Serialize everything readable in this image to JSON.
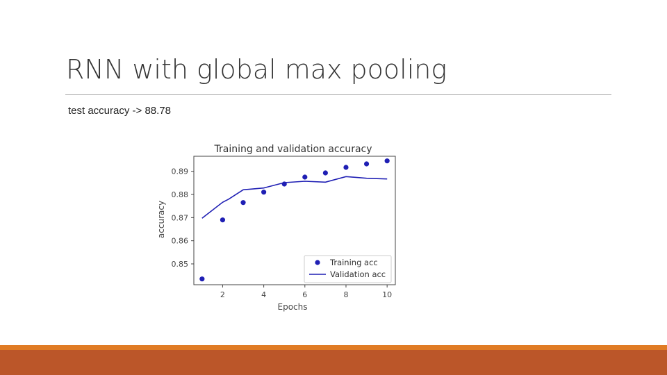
{
  "slide": {
    "title": "RNN with global max pooling",
    "subtitle": "test accuracy -> 88.78"
  },
  "colors": {
    "accent_stripe": "#e07b24",
    "accent_bar": "#bb5629",
    "series": "#1f1fb4"
  },
  "chart_data": {
    "type": "line",
    "title": "Training and validation accuracy",
    "xlabel": "Epochs",
    "ylabel": "accuracy",
    "xlim": [
      0.6,
      10.4
    ],
    "ylim": [
      0.841,
      0.8965
    ],
    "xticks": [
      2,
      4,
      6,
      8,
      10
    ],
    "yticks": [
      0.85,
      0.86,
      0.87,
      0.88,
      0.89
    ],
    "ytick_labels": [
      "0.85",
      "0.86",
      "0.87",
      "0.88",
      "0.89"
    ],
    "legend_position": "lower-right",
    "grid": false,
    "series": [
      {
        "name": "Training acc",
        "style": "points",
        "x": [
          1,
          2,
          3,
          4,
          5,
          6,
          7,
          8,
          9,
          10
        ],
        "y": [
          0.8435,
          0.869,
          0.8765,
          0.881,
          0.8845,
          0.8875,
          0.8893,
          0.8917,
          0.8932,
          0.8945
        ]
      },
      {
        "name": "Validation acc",
        "style": "line",
        "x": [
          1,
          2,
          2.3,
          3,
          4,
          5,
          6,
          7,
          8,
          9,
          10
        ],
        "y": [
          0.8697,
          0.8766,
          0.878,
          0.882,
          0.8828,
          0.8851,
          0.8857,
          0.8853,
          0.8877,
          0.887,
          0.8867
        ]
      }
    ]
  }
}
